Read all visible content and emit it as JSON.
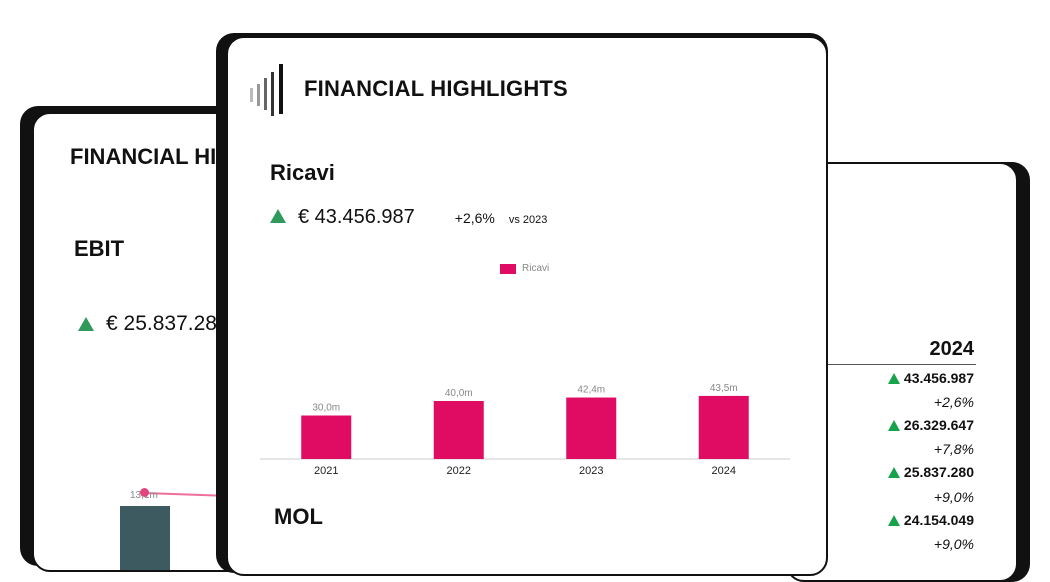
{
  "left_card": {
    "title": "FINANCIAL HIGHLIGHTS",
    "section": "EBIT",
    "value": "€ 25.837.280",
    "mini_label": "13,1m"
  },
  "front_card": {
    "title": "FINANCIAL HIGHLIGHTS",
    "section": "Ricavi",
    "value": "€ 43.456.987",
    "delta": "+2,6%",
    "vs": "vs 2023",
    "next_section": "MOL",
    "accent": "#e00c64",
    "trend_color": "#2f9a5b"
  },
  "chart_data": {
    "type": "bar",
    "categories": [
      "2021",
      "2022",
      "2023",
      "2024"
    ],
    "series": [
      {
        "name": "Ricavi",
        "values": [
          30.0,
          40.0,
          42.4,
          43.5
        ]
      }
    ],
    "data_labels": [
      "30,0m",
      "40,0m",
      "42,4m",
      "43,5m"
    ],
    "ylim": [
      0,
      100
    ],
    "legend": "top-center",
    "grid": false
  },
  "right_card": {
    "year": "2024",
    "rows": [
      {
        "value": "43.456.987",
        "pct": "+2,6%"
      },
      {
        "value": "26.329.647",
        "pct": "+7,8%"
      },
      {
        "value": "25.837.280",
        "pct": "+9,0%"
      },
      {
        "value": "24.154.049",
        "pct": "+9,0%"
      }
    ]
  }
}
